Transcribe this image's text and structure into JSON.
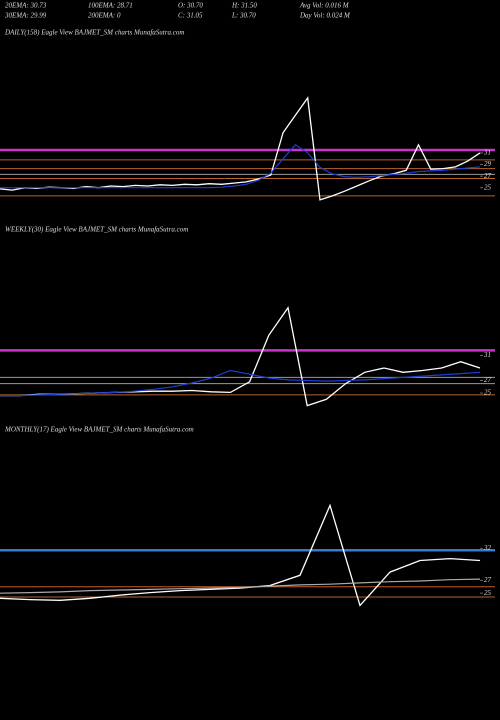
{
  "header": {
    "rows": [
      [
        "20EMA: 30.73",
        "100EMA: 28.71",
        "O: 30.70",
        "H: 31.50",
        "Avg Vol: 0.016  M"
      ],
      [
        "30EMA: 29.99",
        "200EMA: 0",
        "C: 31.05",
        "L: 30.70",
        "Day Vol: 0.024  M"
      ]
    ]
  },
  "chart_data": [
    {
      "type": "line",
      "title": "DAILY(158) Eagle  View  BAJMET_SM charts MunafaSutra.com",
      "ylim": [
        20.3,
        52.2
      ],
      "yticks": [
        31,
        29,
        27,
        25
      ],
      "hlines": [
        {
          "value": 31.5,
          "color": "#cc33cc"
        },
        {
          "value": 29.8,
          "color": "#b8632a"
        },
        {
          "value": 28.3,
          "color": "#b8632a"
        },
        {
          "value": 27.3,
          "color": "#999999"
        },
        {
          "value": 26.6,
          "color": "#b8632a"
        },
        {
          "value": 23.6,
          "color": "#b8632a"
        }
      ],
      "series": [
        {
          "name": "Price",
          "color": "#ffffff",
          "values": [
            24.8,
            24.6,
            25.0,
            24.9,
            25.1,
            25.0,
            24.9,
            25.2,
            25.0,
            25.3,
            25.2,
            25.4,
            25.3,
            25.5,
            25.4,
            25.6,
            25.5,
            25.7,
            25.6,
            25.8,
            26.0,
            26.5,
            27.2,
            34.5,
            37.5,
            40.5,
            22.9,
            23.6,
            24.4,
            25.3,
            26.2,
            27.0,
            27.4,
            28.0,
            32.4,
            28.2,
            28.3,
            28.6,
            29.6,
            31.0
          ]
        },
        {
          "name": "EMA",
          "color": "#1a3fd6",
          "values": [
            25.0,
            25.0,
            25.0,
            25.0,
            25.0,
            25.0,
            25.0,
            25.0,
            25.0,
            25.0,
            25.0,
            25.0,
            25.0,
            25.0,
            25.0,
            25.0,
            25.0,
            25.0,
            25.1,
            25.3,
            25.6,
            26.3,
            27.5,
            30.0,
            32.4,
            31.0,
            28.5,
            27.4,
            26.9,
            26.8,
            26.9,
            27.1,
            27.3,
            27.5,
            27.8,
            27.9,
            28.0,
            28.2,
            28.4,
            28.6
          ]
        }
      ]
    },
    {
      "type": "line",
      "title": "WEEKLY(30) Eagle  View  BAJMET_SM charts MunafaSutra.com",
      "ylim": [
        21.5,
        49.4
      ],
      "yticks": [
        31,
        27,
        25
      ],
      "hlines": [
        {
          "value": 31.8,
          "color": "#cc33cc"
        },
        {
          "value": 27.5,
          "color": "#999999"
        },
        {
          "value": 26.5,
          "color": "#999999"
        },
        {
          "value": 24.7,
          "color": "#b8632a"
        }
      ],
      "series": [
        {
          "name": "Price",
          "color": "#ffffff",
          "values": [
            24.6,
            24.6,
            24.8,
            24.8,
            24.9,
            25.0,
            25.1,
            25.2,
            25.3,
            25.3,
            25.4,
            25.2,
            25.1,
            26.8,
            34.2,
            38.6,
            23.0,
            24.0,
            26.5,
            28.3,
            29.0,
            28.3,
            28.6,
            29.0,
            30.0,
            29.0
          ]
        },
        {
          "name": "EMA",
          "color": "#1a3fd6",
          "values": [
            24.6,
            24.6,
            24.7,
            24.8,
            24.9,
            25.0,
            25.1,
            25.3,
            25.6,
            26.0,
            26.6,
            27.4,
            28.6,
            28.0,
            27.4,
            27.1,
            27.0,
            26.9,
            27.0,
            27.1,
            27.3,
            27.5,
            27.7,
            27.9,
            28.1,
            28.3
          ]
        }
      ]
    },
    {
      "type": "line",
      "title": "MONTHLY(17) Eagle  View  BAJMET_SM charts MunafaSutra.com",
      "ylim": [
        21.6,
        48.9
      ],
      "yticks": [
        32,
        27,
        25
      ],
      "hlines": [
        {
          "value": 31.7,
          "color": "#3a78d8"
        },
        {
          "value": 26.0,
          "color": "#b8632a"
        },
        {
          "value": 24.4,
          "color": "#b8632a"
        }
      ],
      "series": [
        {
          "name": "Price",
          "color": "#ffffff",
          "values": [
            24.2,
            24.0,
            23.9,
            24.2,
            24.7,
            25.1,
            25.4,
            25.6,
            25.8,
            26.2,
            27.8,
            38.7,
            23.1,
            28.3,
            30.1,
            30.4,
            30.1
          ]
        },
        {
          "name": "Average",
          "color": "#aaaaaa",
          "values": [
            25.0,
            25.1,
            25.2,
            25.4,
            25.5,
            25.6,
            25.7,
            25.8,
            25.9,
            26.1,
            26.3,
            26.4,
            26.6,
            26.8,
            26.9,
            27.1,
            27.2
          ]
        }
      ]
    }
  ]
}
